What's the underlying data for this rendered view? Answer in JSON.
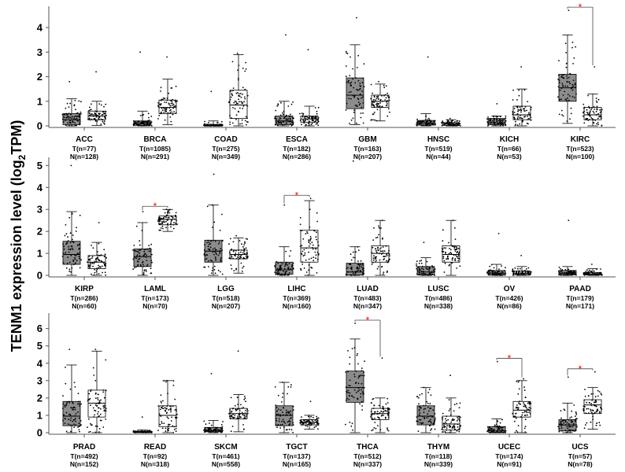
{
  "chart_data": {
    "type": "boxplot",
    "ylabel": "TENM1 expression level (log2TPM)",
    "ylabel_main": "TENM1 expression level (log",
    "ylabel_sub": "2",
    "ylabel_tail": "TPM)",
    "colors": {
      "tumor_fill": "#8c8c8c",
      "normal_fill": "#ffffff",
      "signif": "#ff0000",
      "points": "#000000"
    },
    "significance_marker": "*",
    "panels": [
      {
        "ylim": [
          0,
          4.8
        ],
        "yticks": [
          0,
          1,
          2,
          3,
          4
        ],
        "groups": [
          {
            "name": "ACC",
            "t_label": "T(n=77)",
            "n_label": "N(n=128)",
            "t": {
              "q1": 0.05,
              "med": 0.25,
              "q3": 0.5,
              "wlo": 0,
              "whi": 1.1,
              "max": 1.8
            },
            "n": {
              "q1": 0.25,
              "med": 0.4,
              "q3": 0.6,
              "wlo": 0.02,
              "whi": 1.0,
              "max": 2.2
            },
            "sig": false
          },
          {
            "name": "BRCA",
            "t_label": "T(n=1085)",
            "n_label": "N(n=291)",
            "t": {
              "q1": 0.02,
              "med": 0.08,
              "q3": 0.2,
              "wlo": 0,
              "whi": 0.6,
              "max": 3.0
            },
            "n": {
              "q1": 0.5,
              "med": 0.75,
              "q3": 1.05,
              "wlo": 0.05,
              "whi": 1.9,
              "max": 2.8
            },
            "sig": false
          },
          {
            "name": "COAD",
            "t_label": "T(n=275)",
            "n_label": "N(n=349)",
            "t": {
              "q1": 0.0,
              "med": 0.02,
              "q3": 0.06,
              "wlo": 0,
              "whi": 0.2,
              "max": 1.4
            },
            "n": {
              "q1": 0.3,
              "med": 0.85,
              "q3": 1.45,
              "wlo": 0.0,
              "whi": 2.9,
              "max": 2.95
            },
            "sig": false
          },
          {
            "name": "ESCA",
            "t_label": "T(n=182)",
            "n_label": "N(n=286)",
            "t": {
              "q1": 0.05,
              "med": 0.2,
              "q3": 0.4,
              "wlo": 0,
              "whi": 1.0,
              "max": 3.7
            },
            "n": {
              "q1": 0.15,
              "med": 0.28,
              "q3": 0.4,
              "wlo": 0.0,
              "whi": 0.8,
              "max": 3.1
            },
            "sig": false
          },
          {
            "name": "GBM",
            "t_label": "T(n=163)",
            "n_label": "N(n=207)",
            "t": {
              "q1": 0.7,
              "med": 1.25,
              "q3": 1.95,
              "wlo": 0.05,
              "whi": 3.3,
              "max": 4.4
            },
            "n": {
              "q1": 0.75,
              "med": 1.0,
              "q3": 1.25,
              "wlo": 0.2,
              "whi": 1.7,
              "max": 1.8
            },
            "sig": false
          },
          {
            "name": "HNSC",
            "t_label": "T(n=519)",
            "n_label": "N(n=44)",
            "t": {
              "q1": 0.03,
              "med": 0.1,
              "q3": 0.22,
              "wlo": 0,
              "whi": 0.5,
              "max": 2.8
            },
            "n": {
              "q1": 0.02,
              "med": 0.07,
              "q3": 0.13,
              "wlo": 0,
              "whi": 0.25,
              "max": 0.3
            },
            "sig": false
          },
          {
            "name": "KICH",
            "t_label": "T(n=66)",
            "n_label": "N(n=53)",
            "t": {
              "q1": 0.05,
              "med": 0.12,
              "q3": 0.3,
              "wlo": 0,
              "whi": 0.4,
              "max": 0.9
            },
            "n": {
              "q1": 0.25,
              "med": 0.45,
              "q3": 0.8,
              "wlo": 0.0,
              "whi": 1.5,
              "max": 2.4
            },
            "sig": false
          },
          {
            "name": "KIRC",
            "t_label": "T(n=523)",
            "n_label": "N(n=100)",
            "t": {
              "q1": 1.0,
              "med": 1.55,
              "q3": 2.1,
              "wlo": 0.1,
              "whi": 3.7,
              "max": 4.7
            },
            "n": {
              "q1": 0.25,
              "med": 0.45,
              "q3": 0.75,
              "wlo": 0.0,
              "whi": 1.3,
              "max": 2.4
            },
            "sig": true
          }
        ]
      },
      {
        "ylim": [
          0,
          5.3
        ],
        "yticks": [
          0,
          1,
          2,
          3,
          4,
          5
        ],
        "groups": [
          {
            "name": "KIRP",
            "t_label": "T(n=286)",
            "n_label": "N(n=60)",
            "t": {
              "q1": 0.5,
              "med": 0.95,
              "q3": 1.55,
              "wlo": 0.0,
              "whi": 2.9,
              "max": 5.0
            },
            "n": {
              "q1": 0.3,
              "med": 0.6,
              "q3": 0.9,
              "wlo": 0.0,
              "whi": 1.5,
              "max": 2.4
            },
            "sig": false
          },
          {
            "name": "LAML",
            "t_label": "T(n=173)",
            "n_label": "N(n=70)",
            "t": {
              "q1": 0.4,
              "med": 0.85,
              "q3": 1.2,
              "wlo": 0.0,
              "whi": 2.4,
              "max": 2.9
            },
            "n": {
              "q1": 2.3,
              "med": 2.55,
              "q3": 2.7,
              "wlo": 2.0,
              "whi": 3.0,
              "max": 3.0
            },
            "sig": true
          },
          {
            "name": "LGG",
            "t_label": "T(n=518)",
            "n_label": "N(n=207)",
            "t": {
              "q1": 0.6,
              "med": 1.1,
              "q3": 1.6,
              "wlo": 0.0,
              "whi": 3.2,
              "max": 4.6
            },
            "n": {
              "q1": 0.75,
              "med": 0.95,
              "q3": 1.15,
              "wlo": 0.1,
              "whi": 1.7,
              "max": 1.8
            },
            "sig": false
          },
          {
            "name": "LIHC",
            "t_label": "T(n=369)",
            "n_label": "N(n=160)",
            "t": {
              "q1": 0.05,
              "med": 0.25,
              "q3": 0.6,
              "wlo": 0.0,
              "whi": 1.3,
              "max": 3.2
            },
            "n": {
              "q1": 0.6,
              "med": 1.25,
              "q3": 2.05,
              "wlo": 0.0,
              "whi": 3.4,
              "max": 3.5
            },
            "sig": true
          },
          {
            "name": "LUAD",
            "t_label": "T(n=483)",
            "n_label": "N(n=347)",
            "t": {
              "q1": 0.02,
              "med": 0.15,
              "q3": 0.55,
              "wlo": 0.0,
              "whi": 1.3,
              "max": 5.2
            },
            "n": {
              "q1": 0.6,
              "med": 1.0,
              "q3": 1.35,
              "wlo": 0.0,
              "whi": 2.5,
              "max": 2.5
            },
            "sig": false
          },
          {
            "name": "LUSC",
            "t_label": "T(n=486)",
            "n_label": "N(n=338)",
            "t": {
              "q1": 0.02,
              "med": 0.15,
              "q3": 0.4,
              "wlo": 0.0,
              "whi": 0.8,
              "max": 1.5
            },
            "n": {
              "q1": 0.6,
              "med": 0.95,
              "q3": 1.35,
              "wlo": 0.0,
              "whi": 2.5,
              "max": 2.5
            },
            "sig": false
          },
          {
            "name": "OV",
            "t_label": "T(n=426)",
            "n_label": "N(n=86)",
            "t": {
              "q1": 0.02,
              "med": 0.1,
              "q3": 0.22,
              "wlo": 0.0,
              "whi": 0.5,
              "max": 1.9
            },
            "n": {
              "q1": 0.02,
              "med": 0.08,
              "q3": 0.2,
              "wlo": 0.0,
              "whi": 0.4,
              "max": 0.9
            },
            "sig": false
          },
          {
            "name": "PAAD",
            "t_label": "T(n=179)",
            "n_label": "N(n=171)",
            "t": {
              "q1": 0.03,
              "med": 0.1,
              "q3": 0.22,
              "wlo": 0.0,
              "whi": 0.4,
              "max": 2.5
            },
            "n": {
              "q1": 0.02,
              "med": 0.07,
              "q3": 0.13,
              "wlo": 0.0,
              "whi": 0.3,
              "max": 0.5
            },
            "sig": false
          }
        ]
      },
      {
        "ylim": [
          0,
          6.8
        ],
        "yticks": [
          0,
          1,
          2,
          3,
          4,
          5,
          6
        ],
        "groups": [
          {
            "name": "PRAD",
            "t_label": "T(n=492)",
            "n_label": "N(n=152)",
            "t": {
              "q1": 0.4,
              "med": 0.95,
              "q3": 1.8,
              "wlo": 0.0,
              "whi": 3.9,
              "max": 4.8
            },
            "n": {
              "q1": 0.9,
              "med": 1.7,
              "q3": 2.45,
              "wlo": 0.0,
              "whi": 4.7,
              "max": 4.8
            },
            "sig": false
          },
          {
            "name": "READ",
            "t_label": "T(n=92)",
            "n_label": "N(n=318)",
            "t": {
              "q1": 0.0,
              "med": 0.02,
              "q3": 0.08,
              "wlo": 0.0,
              "whi": 0.15,
              "max": 0.9
            },
            "n": {
              "q1": 0.35,
              "med": 1.0,
              "q3": 1.55,
              "wlo": 0.0,
              "whi": 3.0,
              "max": 3.0
            },
            "sig": false
          },
          {
            "name": "SKCM",
            "t_label": "T(n=461)",
            "n_label": "N(n=558)",
            "t": {
              "q1": 0.05,
              "med": 0.12,
              "q3": 0.3,
              "wlo": 0.0,
              "whi": 0.7,
              "max": 3.4
            },
            "n": {
              "q1": 0.8,
              "med": 1.1,
              "q3": 1.4,
              "wlo": 0.05,
              "whi": 2.2,
              "max": 4.7
            },
            "sig": false
          },
          {
            "name": "TGCT",
            "t_label": "T(n=137)",
            "n_label": "N(n=165)",
            "t": {
              "q1": 0.4,
              "med": 1.0,
              "q3": 1.55,
              "wlo": 0.0,
              "whi": 2.9,
              "max": 2.9
            },
            "n": {
              "q1": 0.45,
              "med": 0.6,
              "q3": 0.75,
              "wlo": 0.2,
              "whi": 1.0,
              "max": 1.8
            },
            "sig": false
          },
          {
            "name": "THCA",
            "t_label": "T(n=512)",
            "n_label": "N(n=337)",
            "t": {
              "q1": 1.75,
              "med": 2.6,
              "q3": 3.55,
              "wlo": 0.0,
              "whi": 5.4,
              "max": 6.3
            },
            "n": {
              "q1": 0.75,
              "med": 1.1,
              "q3": 1.4,
              "wlo": 0.0,
              "whi": 2.0,
              "max": 4.3
            },
            "sig": true
          },
          {
            "name": "THYM",
            "t_label": "T(n=118)",
            "n_label": "N(n=339)",
            "t": {
              "q1": 0.45,
              "med": 0.95,
              "q3": 1.55,
              "wlo": 0.0,
              "whi": 2.6,
              "max": 2.6
            },
            "n": {
              "q1": 0.15,
              "med": 0.5,
              "q3": 0.95,
              "wlo": 0.0,
              "whi": 2.0,
              "max": 3.3
            },
            "sig": false
          },
          {
            "name": "UCEC",
            "t_label": "T(n=174)",
            "n_label": "N(n=91)",
            "t": {
              "q1": 0.02,
              "med": 0.1,
              "q3": 0.35,
              "wlo": 0.0,
              "whi": 0.8,
              "max": 4.1
            },
            "n": {
              "q1": 0.9,
              "med": 1.3,
              "q3": 1.8,
              "wlo": 0.0,
              "whi": 3.0,
              "max": 3.1
            },
            "sig": true
          },
          {
            "name": "UCS",
            "t_label": "T(n=57)",
            "n_label": "N(n=78)",
            "t": {
              "q1": 0.1,
              "med": 0.45,
              "q3": 0.75,
              "wlo": 0.0,
              "whi": 1.7,
              "max": 3.2
            },
            "n": {
              "q1": 1.1,
              "med": 1.6,
              "q3": 1.9,
              "wlo": 0.2,
              "whi": 2.6,
              "max": 3.5
            },
            "sig": true
          }
        ]
      }
    ]
  }
}
